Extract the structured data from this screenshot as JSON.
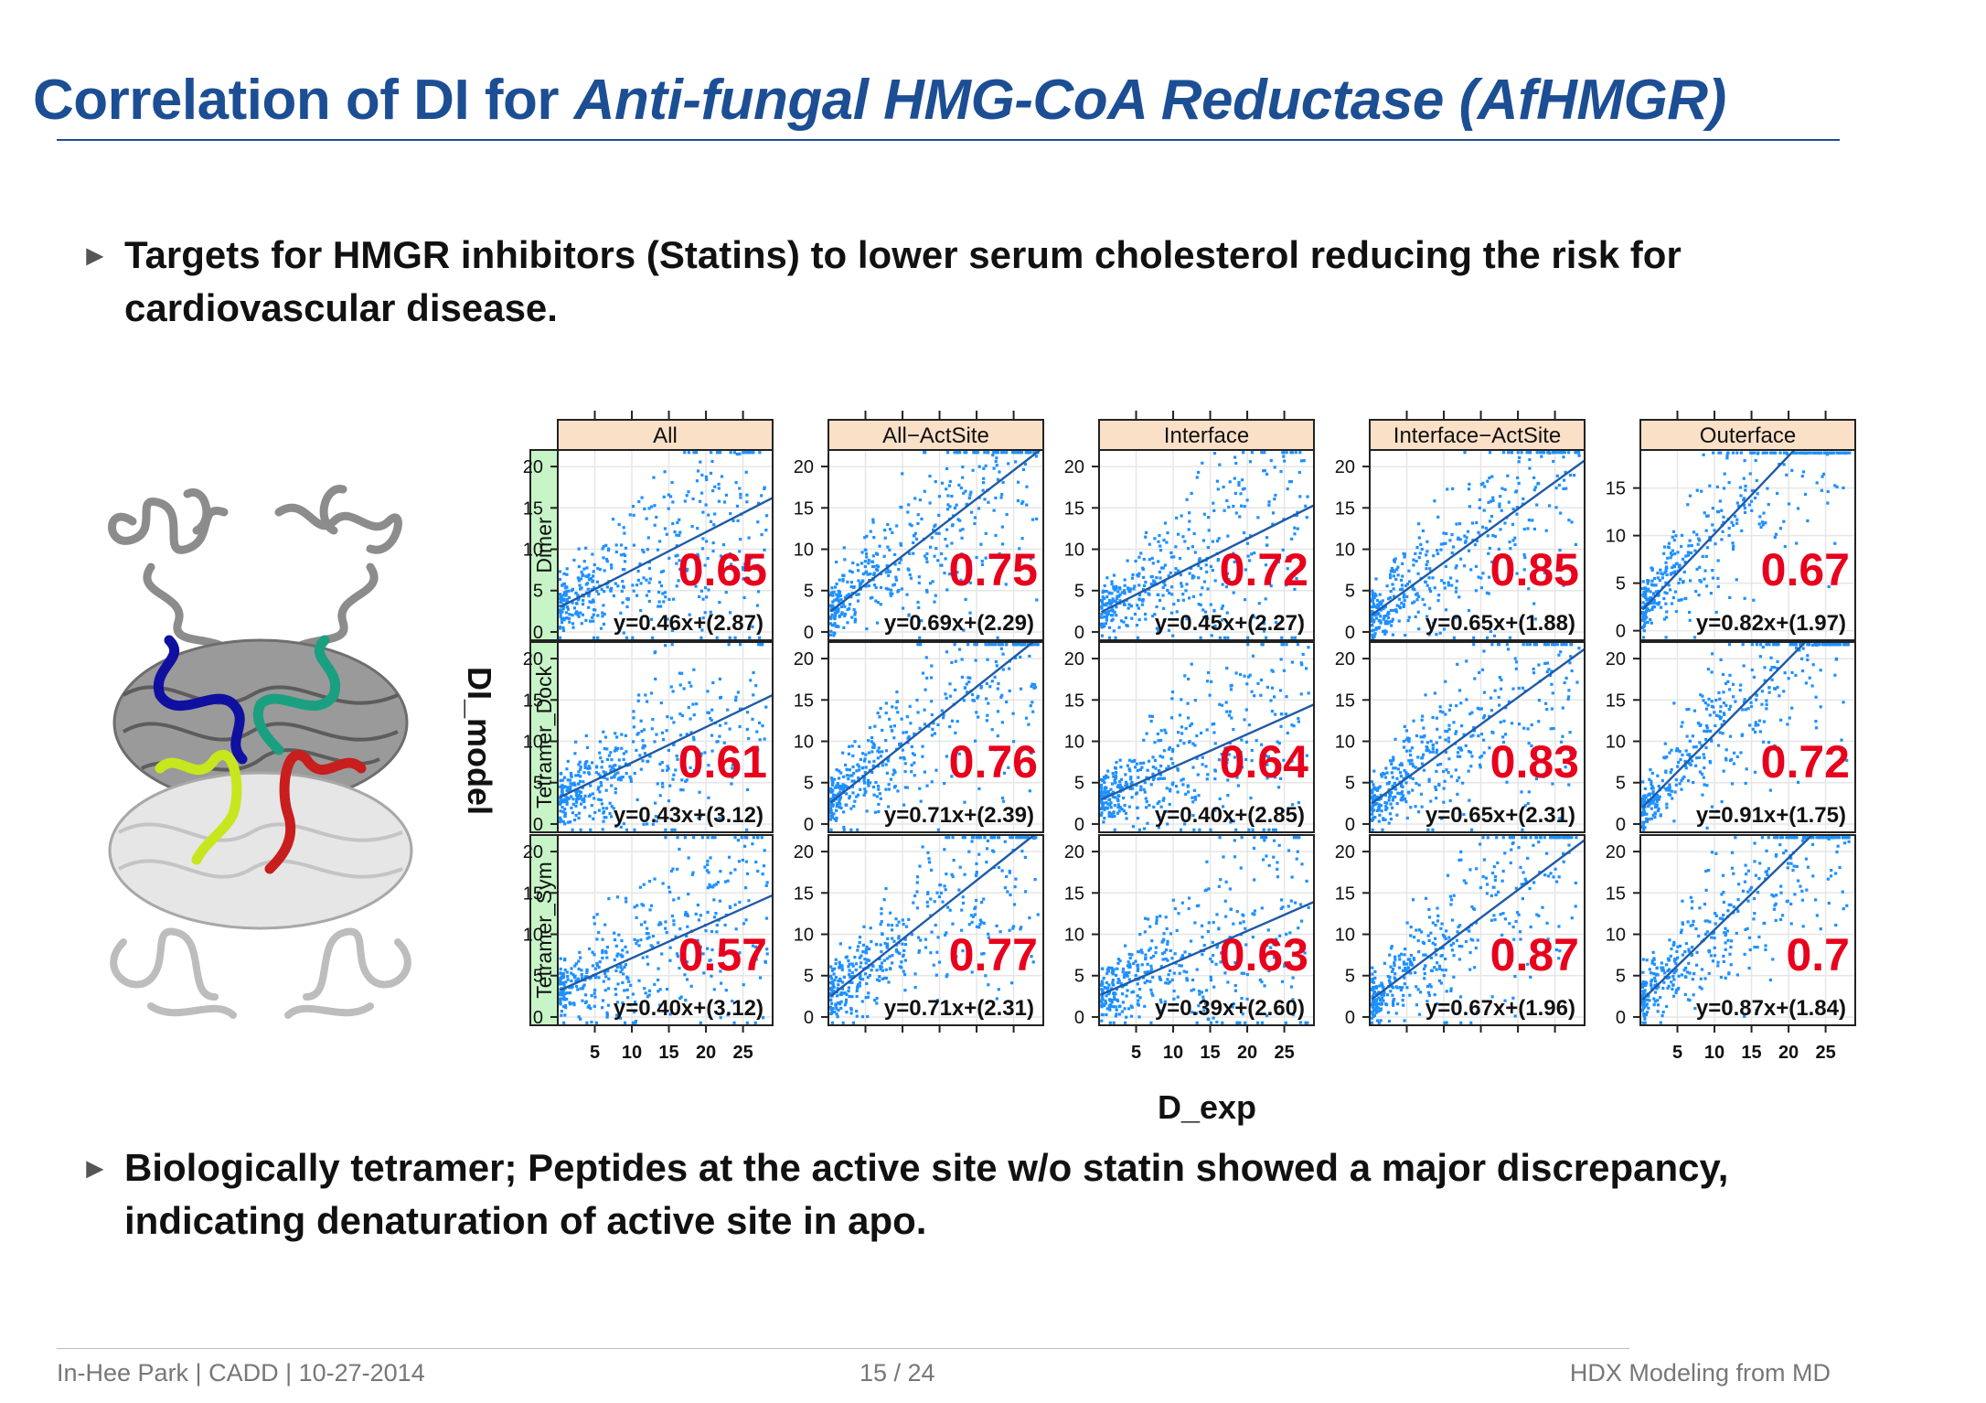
{
  "slide": {
    "title_main": "Correlation of DI for ",
    "title_italic": "Anti-fungal HMG-CoA Reductase (AfHMGR)",
    "bullets": [
      "Targets for HMGR inhibitors (Statins) to lower serum cholesterol reducing the risk for cardiovascular disease.",
      "Biologically tetramer; Peptides at the active site w/o statin showed a major discrepancy, indicating denaturation of active site in apo."
    ],
    "bullet_marker": "►",
    "footer": {
      "left": "In-Hee Park | CADD | 10-27-2014",
      "center": "15 / 24",
      "right": "HDX Modeling from MD"
    }
  },
  "colors": {
    "title": "#1c4e94",
    "points": "#1e90ff",
    "fit_line": "#1f5aa6",
    "r_value": "#e8001c",
    "strip_column": "#fbe0c8",
    "strip_row": "#c8f5c8",
    "helix_blue": "#1010a0",
    "helix_teal": "#1aa080",
    "helix_yellow": "#c8e61e",
    "helix_red": "#c81e1e"
  },
  "structure_icon": "protein-ribbon-tetramer",
  "chart_data": {
    "type": "scatter",
    "layout": "trellis 3 rows x 5 columns",
    "xlabel": "D_exp",
    "ylabel": "DI_model",
    "columns": [
      "All",
      "All−ActSite",
      "Interface",
      "Interface−ActSite",
      "Outerface"
    ],
    "rows": [
      "Dimer",
      "Tetramer_Dock",
      "Tetramer_Sym"
    ],
    "x_ticks": [
      5,
      10,
      15,
      20,
      25
    ],
    "xlim": [
      0,
      29
    ],
    "y_ticks": [
      0,
      5,
      10,
      15,
      20
    ],
    "y_ticks_outerface_dimer": [
      0,
      5,
      10,
      15
    ],
    "ylim": [
      -1,
      22
    ],
    "ylim_outerface_dimer": [
      -1,
      19
    ],
    "panels": [
      {
        "row": "Dimer",
        "column": "All",
        "r": "0.65",
        "equation": "y=0.46x+(2.87)",
        "slope": 0.46,
        "intercept": 2.87
      },
      {
        "row": "Dimer",
        "column": "All−ActSite",
        "r": "0.75",
        "equation": "y=0.69x+(2.29)",
        "slope": 0.69,
        "intercept": 2.29
      },
      {
        "row": "Dimer",
        "column": "Interface",
        "r": "0.72",
        "equation": "y=0.45x+(2.27)",
        "slope": 0.45,
        "intercept": 2.27
      },
      {
        "row": "Dimer",
        "column": "Interface−ActSite",
        "r": "0.85",
        "equation": "y=0.65x+(1.88)",
        "slope": 0.65,
        "intercept": 1.88
      },
      {
        "row": "Dimer",
        "column": "Outerface",
        "r": "0.67",
        "equation": "y=0.82x+(1.97)",
        "slope": 0.82,
        "intercept": 1.97
      },
      {
        "row": "Tetramer_Dock",
        "column": "All",
        "r": "0.61",
        "equation": "y=0.43x+(3.12)",
        "slope": 0.43,
        "intercept": 3.12
      },
      {
        "row": "Tetramer_Dock",
        "column": "All−ActSite",
        "r": "0.76",
        "equation": "y=0.71x+(2.39)",
        "slope": 0.71,
        "intercept": 2.39
      },
      {
        "row": "Tetramer_Dock",
        "column": "Interface",
        "r": "0.64",
        "equation": "y=0.40x+(2.85)",
        "slope": 0.4,
        "intercept": 2.85
      },
      {
        "row": "Tetramer_Dock",
        "column": "Interface−ActSite",
        "r": "0.83",
        "equation": "y=0.65x+(2.31)",
        "slope": 0.65,
        "intercept": 2.31
      },
      {
        "row": "Tetramer_Dock",
        "column": "Outerface",
        "r": "0.72",
        "equation": "y=0.91x+(1.75)",
        "slope": 0.91,
        "intercept": 1.75
      },
      {
        "row": "Tetramer_Sym",
        "column": "All",
        "r": "0.57",
        "equation": "y=0.40x+(3.12)",
        "slope": 0.4,
        "intercept": 3.12
      },
      {
        "row": "Tetramer_Sym",
        "column": "All−ActSite",
        "r": "0.77",
        "equation": "y=0.71x+(2.31)",
        "slope": 0.71,
        "intercept": 2.31
      },
      {
        "row": "Tetramer_Sym",
        "column": "Interface",
        "r": "0.63",
        "equation": "y=0.39x+(2.60)",
        "slope": 0.39,
        "intercept": 2.6
      },
      {
        "row": "Tetramer_Sym",
        "column": "Interface−ActSite",
        "r": "0.87",
        "equation": "y=0.67x+(1.96)",
        "slope": 0.67,
        "intercept": 1.96
      },
      {
        "row": "Tetramer_Sym",
        "column": "Outerface",
        "r": "0.7",
        "equation": "y=0.87x+(1.84)",
        "slope": 0.87,
        "intercept": 1.84
      }
    ]
  }
}
